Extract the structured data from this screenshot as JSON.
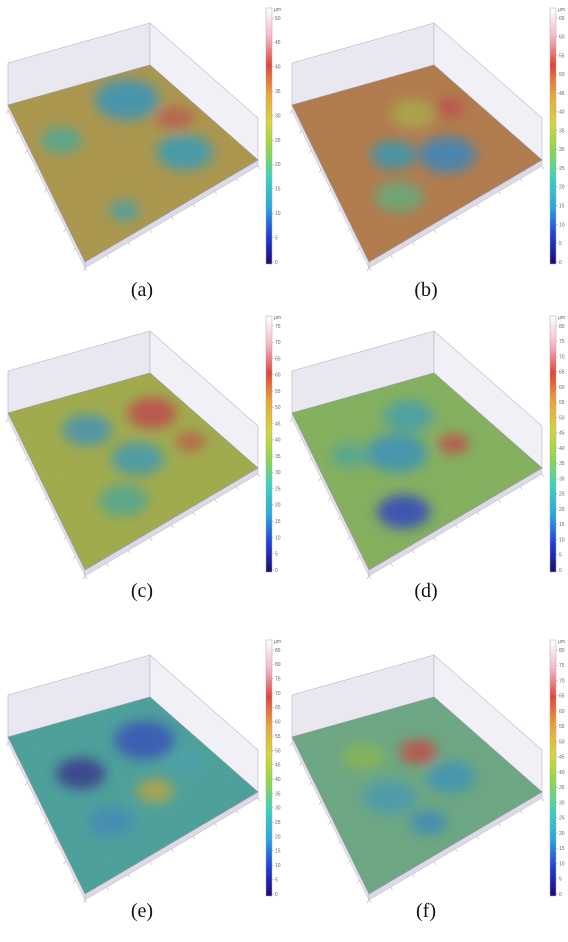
{
  "colors": {
    "scale": [
      "#1a0a7a",
      "#1f3fd6",
      "#2aa6e0",
      "#39d1c0",
      "#8fd64a",
      "#d8d43a",
      "#e9a23a",
      "#e0453a",
      "#f3b8c8",
      "#ffffff"
    ],
    "box_side": "#e9e7f0",
    "box_edge": "#b8b6c6"
  },
  "panels": [
    {
      "id": "a",
      "caption": "(a)",
      "scale_unit": "µm",
      "scale_ticks": [
        "50",
        "45",
        "40",
        "35",
        "30",
        "25",
        "20",
        "15",
        "10",
        "5",
        "0"
      ],
      "surface_base": "#c9a93a",
      "hot": "#d8603a",
      "cool": "#2aa6d0",
      "spots": [
        {
          "u": 0.2,
          "v": 0.3,
          "r": 0.17,
          "c": "#2aa6d0"
        },
        {
          "u": 0.7,
          "v": 0.25,
          "r": 0.15,
          "c": "#2ab0c8"
        },
        {
          "u": 0.45,
          "v": 0.15,
          "r": 0.1,
          "c": "#d8603a"
        },
        {
          "u": 0.3,
          "v": 0.8,
          "r": 0.11,
          "c": "#4cc29a"
        },
        {
          "u": 0.85,
          "v": 0.7,
          "r": 0.08,
          "c": "#3ab8b8"
        }
      ]
    },
    {
      "id": "b",
      "caption": "(b)",
      "scale_unit": "µm",
      "scale_ticks": [
        "65",
        "60",
        "55",
        "50",
        "45",
        "40",
        "35",
        "30",
        "25",
        "20",
        "15",
        "10",
        "5",
        "0"
      ],
      "surface_base": "#d2803a",
      "hot": "#e0453a",
      "cool": "#2a8fd6",
      "spots": [
        {
          "u": 0.65,
          "v": 0.35,
          "r": 0.15,
          "c": "#2a8fd6"
        },
        {
          "u": 0.5,
          "v": 0.6,
          "r": 0.12,
          "c": "#2aa6c0"
        },
        {
          "u": 0.75,
          "v": 0.7,
          "r": 0.13,
          "c": "#6ac27a"
        },
        {
          "u": 0.3,
          "v": 0.35,
          "r": 0.12,
          "c": "#c8c03a"
        },
        {
          "u": 0.35,
          "v": 0.15,
          "r": 0.08,
          "c": "#e0453a"
        }
      ]
    },
    {
      "id": "c",
      "caption": "(c)",
      "scale_unit": "µm",
      "scale_ticks": [
        "75",
        "70",
        "65",
        "60",
        "55",
        "50",
        "45",
        "40",
        "35",
        "30",
        "25",
        "20",
        "15",
        "10",
        "5",
        "0"
      ],
      "surface_base": "#b8c83a",
      "hot": "#e0453a",
      "cool": "#2aa6c0",
      "spots": [
        {
          "u": 0.3,
          "v": 0.2,
          "r": 0.13,
          "c": "#e0453a"
        },
        {
          "u": 0.55,
          "v": 0.45,
          "r": 0.14,
          "c": "#3ab0c0"
        },
        {
          "u": 0.25,
          "v": 0.6,
          "r": 0.13,
          "c": "#3aa8c8"
        },
        {
          "u": 0.75,
          "v": 0.65,
          "r": 0.13,
          "c": "#4cc29a"
        },
        {
          "u": 0.6,
          "v": 0.15,
          "r": 0.08,
          "c": "#d8603a"
        }
      ]
    },
    {
      "id": "d",
      "caption": "(d)",
      "scale_unit": "µm",
      "scale_ticks": [
        "80",
        "75",
        "70",
        "65",
        "60",
        "55",
        "50",
        "45",
        "40",
        "35",
        "30",
        "25",
        "20",
        "15",
        "10",
        "5",
        "0"
      ],
      "surface_base": "#8ecf55",
      "hot": "#e0453a",
      "cool": "#1f3fd6",
      "spots": [
        {
          "u": 0.8,
          "v": 0.7,
          "r": 0.14,
          "c": "#1f3fd6"
        },
        {
          "u": 0.45,
          "v": 0.55,
          "r": 0.16,
          "c": "#2aa6d0"
        },
        {
          "u": 0.25,
          "v": 0.35,
          "r": 0.13,
          "c": "#3ab8c0"
        },
        {
          "u": 0.55,
          "v": 0.25,
          "r": 0.08,
          "c": "#e0453a"
        },
        {
          "u": 0.35,
          "v": 0.8,
          "r": 0.1,
          "c": "#4cc2a0"
        }
      ]
    },
    {
      "id": "e",
      "caption": "(e)",
      "scale_unit": "µm",
      "scale_ticks": [
        "85",
        "80",
        "75",
        "70",
        "65",
        "60",
        "55",
        "50",
        "45",
        "40",
        "35",
        "30",
        "25",
        "20",
        "15",
        "10",
        "5",
        "0"
      ],
      "surface_base": "#3ab8b0",
      "hot": "#d8b03a",
      "cool": "#1f3fd6",
      "spots": [
        {
          "u": 0.3,
          "v": 0.25,
          "r": 0.16,
          "c": "#1f4fd6"
        },
        {
          "u": 0.35,
          "v": 0.7,
          "r": 0.13,
          "c": "#1a2a9a"
        },
        {
          "u": 0.65,
          "v": 0.4,
          "r": 0.1,
          "c": "#c8c03a"
        },
        {
          "u": 0.7,
          "v": 0.7,
          "r": 0.12,
          "c": "#2a9ad6"
        },
        {
          "u": 0.55,
          "v": 0.15,
          "r": 0.09,
          "c": "#3ab8c8"
        }
      ]
    },
    {
      "id": "f",
      "caption": "(f)",
      "scale_unit": "µm",
      "scale_ticks": [
        "80",
        "75",
        "70",
        "65",
        "60",
        "55",
        "50",
        "45",
        "40",
        "35",
        "30",
        "25",
        "20",
        "15",
        "10",
        "5",
        "0"
      ],
      "surface_base": "#6ac28a",
      "hot": "#e0453a",
      "cool": "#2a9ad6",
      "spots": [
        {
          "u": 0.35,
          "v": 0.35,
          "r": 0.1,
          "c": "#e0453a"
        },
        {
          "u": 0.6,
          "v": 0.3,
          "r": 0.13,
          "c": "#2aa6d0"
        },
        {
          "u": 0.55,
          "v": 0.65,
          "r": 0.14,
          "c": "#3ab0c8"
        },
        {
          "u": 0.25,
          "v": 0.65,
          "r": 0.11,
          "c": "#8fd64a"
        },
        {
          "u": 0.8,
          "v": 0.55,
          "r": 0.1,
          "c": "#2a9ad6"
        }
      ]
    }
  ]
}
